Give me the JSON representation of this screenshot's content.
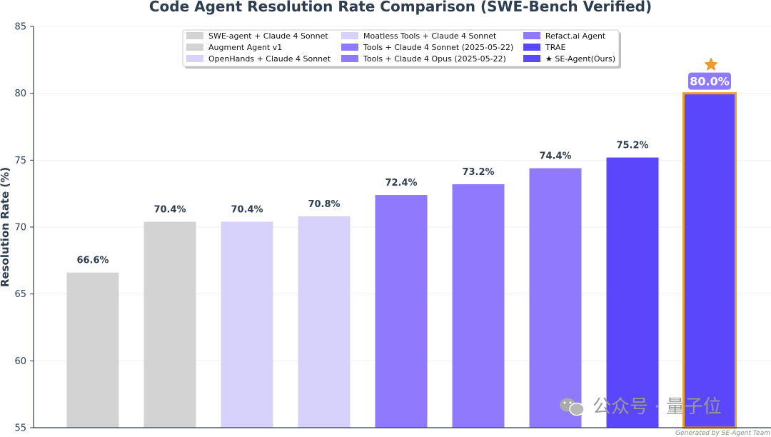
{
  "chart_data": {
    "type": "bar",
    "title": "Code Agent Resolution Rate Comparison (SWE-Bench Verified)",
    "xlabel": "",
    "ylabel": "Resolution Rate (%)",
    "ylim": [
      55,
      85
    ],
    "yticks": [
      55,
      60,
      65,
      70,
      75,
      80,
      85
    ],
    "grid": "horizontal",
    "legend_position": "top-center",
    "categories": [
      "SWE-agent + Claude 4 Sonnet",
      "Augment Agent v1",
      "OpenHands + Claude 4 Sonnet",
      "Moatless Tools + Claude 4 Sonnet",
      "Tools + Claude 4 Sonnet (2025-05-22)",
      "Tools + Claude 4 Opus (2025-05-22)",
      "Refact.ai Agent",
      "TRAE",
      "★ SE-Agent(Ours)"
    ],
    "values": [
      66.6,
      70.4,
      70.4,
      70.8,
      72.4,
      73.2,
      74.4,
      75.2,
      80.0
    ],
    "value_labels": [
      "66.6%",
      "70.4%",
      "70.4%",
      "70.8%",
      "72.4%",
      "73.2%",
      "74.4%",
      "75.2%",
      "80.0%"
    ],
    "colors": [
      "#d3d3d3",
      "#d3d3d3",
      "#d7d2fb",
      "#d7d2fb",
      "#9079fc",
      "#9079fc",
      "#9079fc",
      "#5b47fb",
      "#5b47fb"
    ],
    "highlight_index": 8,
    "highlight_border_color": "#f0a020",
    "highlight_label_bg": "#9079fc",
    "star_color": "#f39c2c"
  },
  "watermark_text": "公众号 · 量子位",
  "footer_text": "Generated by SE-Agent Team"
}
